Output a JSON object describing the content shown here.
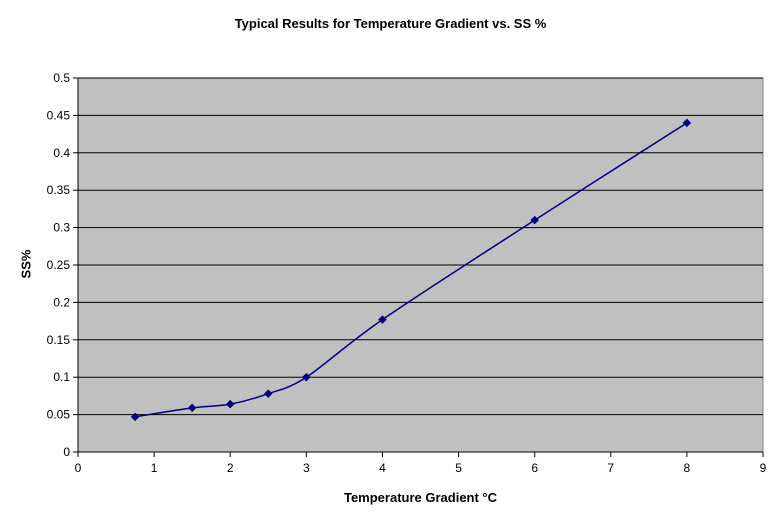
{
  "chart_data": {
    "type": "line",
    "title": "Typical Results for Temperature Gradient vs. SS %",
    "xlabel": "Temperature Gradient °C",
    "ylabel": "SS%",
    "xlim": [
      0,
      9
    ],
    "ylim": [
      0,
      0.5
    ],
    "x_ticks": [
      "0",
      "1",
      "2",
      "3",
      "4",
      "5",
      "6",
      "7",
      "8",
      "9"
    ],
    "y_ticks": [
      "0",
      "0.05",
      "0.1",
      "0.15",
      "0.2",
      "0.25",
      "0.3",
      "0.35",
      "0.4",
      "0.45",
      "0.5"
    ],
    "grid": "horizontal",
    "legend": "none",
    "series": [
      {
        "x": [
          0.75,
          1.5,
          2,
          2.5,
          3,
          4,
          6,
          8
        ],
        "y": [
          0.047,
          0.059,
          0.064,
          0.078,
          0.1,
          0.177,
          0.31,
          0.44
        ]
      }
    ],
    "colors": {
      "plot_area": "#c0c0c0",
      "line": "#000080",
      "marker": "#000080",
      "grid": "#000000"
    }
  }
}
